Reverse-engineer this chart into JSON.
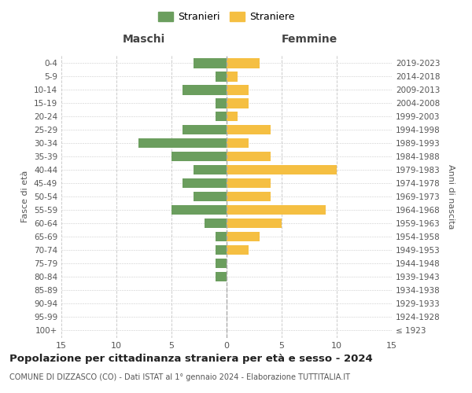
{
  "age_groups": [
    "100+",
    "95-99",
    "90-94",
    "85-89",
    "80-84",
    "75-79",
    "70-74",
    "65-69",
    "60-64",
    "55-59",
    "50-54",
    "45-49",
    "40-44",
    "35-39",
    "30-34",
    "25-29",
    "20-24",
    "15-19",
    "10-14",
    "5-9",
    "0-4"
  ],
  "birth_years": [
    "≤ 1923",
    "1924-1928",
    "1929-1933",
    "1934-1938",
    "1939-1943",
    "1944-1948",
    "1949-1953",
    "1954-1958",
    "1959-1963",
    "1964-1968",
    "1969-1973",
    "1974-1978",
    "1979-1983",
    "1984-1988",
    "1989-1993",
    "1994-1998",
    "1999-2003",
    "2004-2008",
    "2009-2013",
    "2014-2018",
    "2019-2023"
  ],
  "maschi": [
    0,
    0,
    0,
    0,
    1,
    1,
    1,
    1,
    2,
    5,
    3,
    4,
    3,
    5,
    8,
    4,
    1,
    1,
    4,
    1,
    3
  ],
  "femmine": [
    0,
    0,
    0,
    0,
    0,
    0,
    2,
    3,
    5,
    9,
    4,
    4,
    10,
    4,
    2,
    4,
    1,
    2,
    2,
    1,
    3
  ],
  "maschi_color": "#6b9e5e",
  "femmine_color": "#f5bf42",
  "title": "Popolazione per cittadinanza straniera per età e sesso - 2024",
  "subtitle": "COMUNE DI DIZZASCO (CO) - Dati ISTAT al 1° gennaio 2024 - Elaborazione TUTTITALIA.IT",
  "legend_maschi": "Stranieri",
  "legend_femmine": "Straniere",
  "xlabel_left": "Maschi",
  "xlabel_right": "Femmine",
  "ylabel_left": "Fasce di età",
  "ylabel_right": "Anni di nascita",
  "xlim": 15,
  "background_color": "#ffffff",
  "grid_color": "#cccccc"
}
